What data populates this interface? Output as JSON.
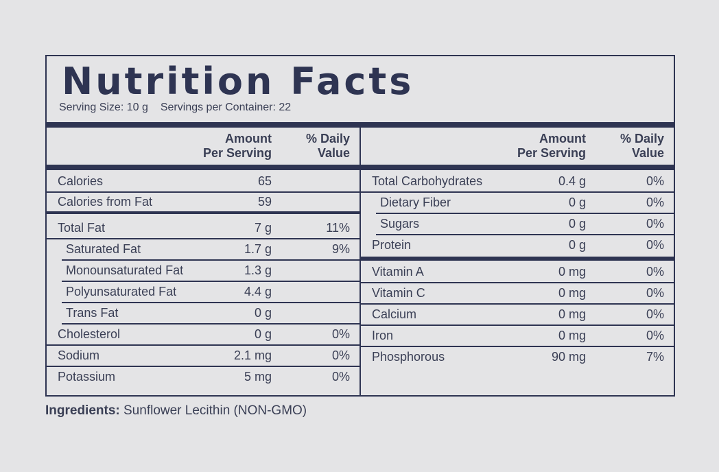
{
  "title": "Nutrition Facts",
  "serving": {
    "size": "Serving Size: 10 g",
    "per_container": "Servings per Container: 22"
  },
  "header": {
    "amount_line1": "Amount",
    "amount_line2": "Per Serving",
    "dv_line1": "% Daily",
    "dv_line2": "Value"
  },
  "left": {
    "calories": {
      "name": "Calories",
      "amount": "65",
      "dv": ""
    },
    "calories_fat": {
      "name": "Calories from Fat",
      "amount": "59",
      "dv": ""
    },
    "total_fat": {
      "name": "Total Fat",
      "amount": "7 g",
      "dv": "11%"
    },
    "saturated_fat": {
      "name": "Saturated Fat",
      "amount": "1.7 g",
      "dv": "9%"
    },
    "mono_fat": {
      "name": "Monounsaturated Fat",
      "amount": "1.3 g",
      "dv": ""
    },
    "poly_fat": {
      "name": "Polyunsaturated Fat",
      "amount": "4.4 g",
      "dv": ""
    },
    "trans_fat": {
      "name": "Trans Fat",
      "amount": "0 g",
      "dv": ""
    },
    "cholesterol": {
      "name": "Cholesterol",
      "amount": "0 g",
      "dv": "0%"
    },
    "sodium": {
      "name": "Sodium",
      "amount": "2.1 mg",
      "dv": "0%"
    },
    "potassium": {
      "name": "Potassium",
      "amount": "5 mg",
      "dv": "0%"
    }
  },
  "right": {
    "carbs": {
      "name": "Total Carbohydrates",
      "amount": "0.4 g",
      "dv": "0%"
    },
    "fiber": {
      "name": "Dietary Fiber",
      "amount": "0 g",
      "dv": "0%"
    },
    "sugars": {
      "name": "Sugars",
      "amount": "0 g",
      "dv": "0%"
    },
    "protein": {
      "name": "Protein",
      "amount": "0 g",
      "dv": "0%"
    },
    "vitamin_a": {
      "name": "Vitamin A",
      "amount": "0 mg",
      "dv": "0%"
    },
    "vitamin_c": {
      "name": "Vitamin C",
      "amount": "0 mg",
      "dv": "0%"
    },
    "calcium": {
      "name": "Calcium",
      "amount": "0 mg",
      "dv": "0%"
    },
    "iron": {
      "name": "Iron",
      "amount": "0 mg",
      "dv": "0%"
    },
    "phosphorous": {
      "name": "Phosphorous",
      "amount": "90 mg",
      "dv": "7%"
    }
  },
  "ingredients": {
    "label": "Ingredients:",
    "text": " Sunflower Lecithin (NON-GMO)"
  },
  "colors": {
    "ink": "#2e3452",
    "background": "#e4e4e6"
  }
}
